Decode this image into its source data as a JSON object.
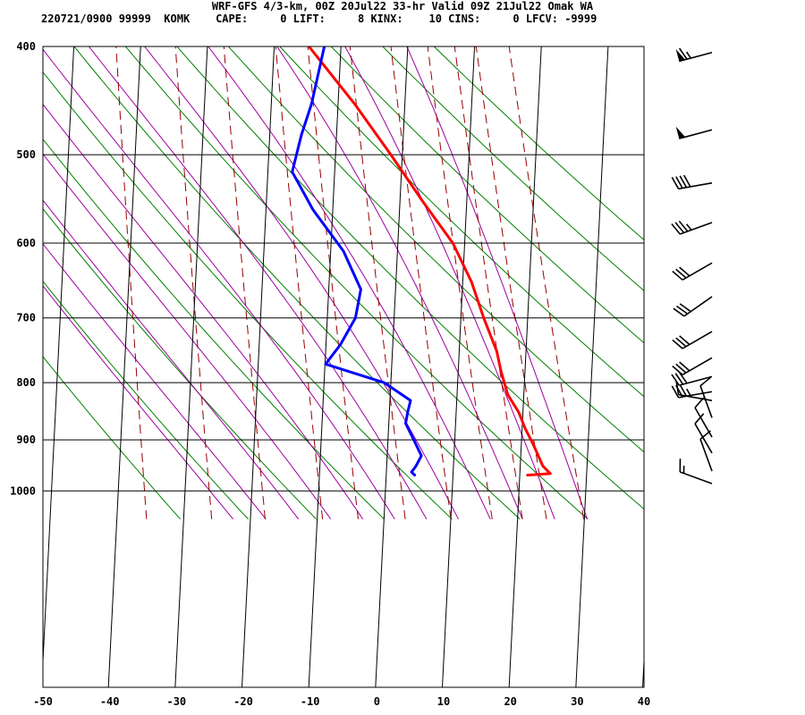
{
  "header": {
    "line1": "WRF-GFS 4/3-km, 00Z 20Jul22 33-hr Valid 09Z 21Jul22 Omak WA",
    "line2": "220721/0900 99999  KOMK    CAPE:     0 LIFT:     8 KINX:    10 CINS:     0 LFCV: -9999"
  },
  "chart_data": {
    "type": "line",
    "subtype": "skew-t log-p sounding",
    "xlim": [
      -50,
      40
    ],
    "ylim": [
      1040,
      400
    ],
    "x_ticks": [
      "-50",
      "-40",
      "-30",
      "-20",
      "-10",
      "0",
      "10",
      "20",
      "30",
      "40"
    ],
    "y_ticks": [
      "400",
      "500",
      "600",
      "700",
      "800",
      "900",
      "1000"
    ],
    "y_scale": "log",
    "grid": true,
    "isotherms_c": [
      -50,
      -40,
      -30,
      -20,
      -10,
      0,
      10,
      20,
      30,
      40
    ],
    "isobars_hpa": [
      500,
      600,
      700,
      800,
      900,
      1000
    ],
    "dry_adiabats_k": [
      240,
      250,
      260,
      270,
      280,
      290,
      300,
      310,
      320,
      330,
      340,
      350,
      360
    ],
    "moist_adiabats_c": [
      -25,
      -20,
      -15,
      -10,
      -5,
      0,
      5,
      10,
      15,
      20,
      25,
      30
    ],
    "mixing_ratios_gkg": [
      0.2,
      0.5,
      1,
      2,
      3,
      5,
      8,
      12,
      16,
      20,
      28
    ],
    "colors": {
      "temperature": "#ff0000",
      "dewpoint": "#0000ff",
      "dry_adiabat": "#008000",
      "moist_adiabat": "#a000a0",
      "mixing_ratio": "#990000",
      "grid": "#000000"
    },
    "series": [
      {
        "key": "temperature",
        "points": [
          {
            "p": 968,
            "t": 22.4
          },
          {
            "p": 965,
            "t": 25.8
          },
          {
            "p": 950,
            "t": 24.6
          },
          {
            "p": 930,
            "t": 23.8
          },
          {
            "p": 910,
            "t": 23.0
          },
          {
            "p": 880,
            "t": 21.6
          },
          {
            "p": 850,
            "t": 20.4
          },
          {
            "p": 820,
            "t": 18.6
          },
          {
            "p": 780,
            "t": 17.3
          },
          {
            "p": 750,
            "t": 16.5
          },
          {
            "p": 700,
            "t": 14.2
          },
          {
            "p": 650,
            "t": 12.0
          },
          {
            "p": 600,
            "t": 8.8
          },
          {
            "p": 550,
            "t": 3.8
          },
          {
            "p": 500,
            "t": -1.4
          },
          {
            "p": 450,
            "t": -7.4
          },
          {
            "p": 400,
            "t": -14.8
          }
        ]
      },
      {
        "key": "dewpoint",
        "points": [
          {
            "p": 968,
            "t": 5.5
          },
          {
            "p": 962,
            "t": 5.0
          },
          {
            "p": 950,
            "t": 5.6
          },
          {
            "p": 930,
            "t": 6.3
          },
          {
            "p": 900,
            "t": 5.0
          },
          {
            "p": 870,
            "t": 3.6
          },
          {
            "p": 850,
            "t": 3.8
          },
          {
            "p": 830,
            "t": 4.1
          },
          {
            "p": 800,
            "t": 0.0
          },
          {
            "p": 770,
            "t": -9.0
          },
          {
            "p": 740,
            "t": -7.0
          },
          {
            "p": 700,
            "t": -5.0
          },
          {
            "p": 660,
            "t": -4.5
          },
          {
            "p": 610,
            "t": -7.5
          },
          {
            "p": 560,
            "t": -12.5
          },
          {
            "p": 518,
            "t": -16.0
          },
          {
            "p": 480,
            "t": -15.0
          },
          {
            "p": 450,
            "t": -13.8
          },
          {
            "p": 400,
            "t": -12.5
          }
        ]
      }
    ],
    "wind_barbs": [
      {
        "p": 405,
        "dir_deg": 255,
        "speed_kt": 65
      },
      {
        "p": 475,
        "dir_deg": 255,
        "speed_kt": 50
      },
      {
        "p": 530,
        "dir_deg": 260,
        "speed_kt": 40
      },
      {
        "p": 575,
        "dir_deg": 250,
        "speed_kt": 35
      },
      {
        "p": 625,
        "dir_deg": 240,
        "speed_kt": 30
      },
      {
        "p": 670,
        "dir_deg": 235,
        "speed_kt": 30
      },
      {
        "p": 720,
        "dir_deg": 240,
        "speed_kt": 30
      },
      {
        "p": 760,
        "dir_deg": 240,
        "speed_kt": 30
      },
      {
        "p": 790,
        "dir_deg": 255,
        "speed_kt": 30
      },
      {
        "p": 815,
        "dir_deg": 260,
        "speed_kt": 35
      },
      {
        "p": 830,
        "dir_deg": 280,
        "speed_kt": 10
      },
      {
        "p": 860,
        "dir_deg": 340,
        "speed_kt": 10
      },
      {
        "p": 895,
        "dir_deg": 330,
        "speed_kt": 10
      },
      {
        "p": 925,
        "dir_deg": 330,
        "speed_kt": 10
      },
      {
        "p": 960,
        "dir_deg": 340,
        "speed_kt": 10
      },
      {
        "p": 985,
        "dir_deg": 290,
        "speed_kt": 15
      }
    ]
  }
}
